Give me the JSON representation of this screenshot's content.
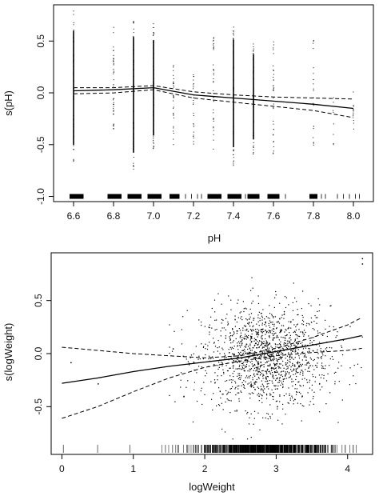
{
  "chart_data": [
    {
      "type": "scatter",
      "xlabel": "pH",
      "ylabel": "s(pH)",
      "xlim": [
        6.5,
        8.1
      ],
      "ylim": [
        -1.05,
        0.85
      ],
      "xticks": [
        6.6,
        6.8,
        7.0,
        7.2,
        7.4,
        7.6,
        7.8,
        8.0
      ],
      "xtick_labels": [
        "6.6",
        "6.8",
        "7.0",
        "7.2",
        "7.4",
        "7.6",
        "7.8",
        "8.0"
      ],
      "yticks": [
        -1.0,
        -0.5,
        0.0,
        0.5
      ],
      "ytick_labels": [
        "-1.0",
        "-0.5",
        "0.0",
        "0.5"
      ],
      "grid": false,
      "legend": "none",
      "partial_residual_columns": [
        {
          "x": 6.6,
          "ymin": -0.67,
          "ymax": 0.8,
          "n": 60,
          "dense": true
        },
        {
          "x": 6.8,
          "ymin": -0.45,
          "ymax": 0.67,
          "n": 40,
          "dense": false
        },
        {
          "x": 6.9,
          "ymin": -0.77,
          "ymax": 0.72,
          "n": 65,
          "dense": true
        },
        {
          "x": 7.0,
          "ymin": -0.55,
          "ymax": 0.68,
          "n": 60,
          "dense": true
        },
        {
          "x": 7.1,
          "ymin": -0.5,
          "ymax": 0.3,
          "n": 30,
          "dense": false
        },
        {
          "x": 7.2,
          "ymin": -0.55,
          "ymax": 0.25,
          "n": 25,
          "dense": false
        },
        {
          "x": 7.3,
          "ymin": -0.55,
          "ymax": 0.55,
          "n": 40,
          "dense": false
        },
        {
          "x": 7.4,
          "ymin": -0.7,
          "ymax": 0.68,
          "n": 55,
          "dense": true
        },
        {
          "x": 7.5,
          "ymin": -0.6,
          "ymax": 0.5,
          "n": 50,
          "dense": true
        },
        {
          "x": 7.6,
          "ymin": -0.6,
          "ymax": 0.5,
          "n": 35,
          "dense": false
        },
        {
          "x": 7.8,
          "ymin": -0.55,
          "ymax": 0.55,
          "n": 22,
          "dense": false
        },
        {
          "x": 7.9,
          "ymin": -0.5,
          "ymax": 0.0,
          "n": 8,
          "dense": false
        },
        {
          "x": 8.0,
          "ymin": -0.45,
          "ymax": 0.05,
          "n": 12,
          "dense": false
        }
      ],
      "smooth": {
        "x": [
          6.6,
          6.8,
          7.0,
          7.2,
          7.4,
          7.6,
          7.8,
          8.0
        ],
        "y": [
          0.02,
          0.03,
          0.05,
          -0.02,
          -0.05,
          -0.08,
          -0.11,
          -0.15
        ]
      },
      "upper_band": {
        "x": [
          6.6,
          6.8,
          7.0,
          7.2,
          7.4,
          7.6,
          7.8,
          8.0
        ],
        "y": [
          0.05,
          0.05,
          0.07,
          0.01,
          -0.02,
          -0.04,
          -0.05,
          -0.06
        ]
      },
      "lower_band": {
        "x": [
          6.6,
          6.8,
          7.0,
          7.2,
          7.4,
          7.6,
          7.8,
          8.0
        ],
        "y": [
          -0.01,
          0.0,
          0.03,
          -0.05,
          -0.09,
          -0.13,
          -0.17,
          -0.24
        ]
      },
      "rug": {
        "dense_ranges": [
          [
            6.58,
            6.65
          ],
          [
            6.77,
            6.84
          ],
          [
            6.87,
            6.94
          ],
          [
            6.97,
            7.04
          ],
          [
            7.08,
            7.13
          ],
          [
            7.27,
            7.34
          ],
          [
            7.37,
            7.44
          ],
          [
            7.47,
            7.53
          ],
          [
            7.57,
            7.63
          ],
          [
            7.78,
            7.82
          ]
        ],
        "sparse_x": [
          7.16,
          7.19,
          7.22,
          7.24,
          7.46,
          7.66,
          7.84,
          7.86,
          7.92,
          7.95,
          7.98,
          8.01,
          8.03
        ]
      }
    },
    {
      "type": "scatter",
      "xlabel": "logWeight",
      "ylabel": "s(logWeight)",
      "xlim": [
        -0.15,
        4.35
      ],
      "ylim": [
        -0.95,
        0.95
      ],
      "xticks": [
        0,
        1,
        2,
        3,
        4
      ],
      "xtick_labels": [
        "0",
        "1",
        "2",
        "3",
        "4"
      ],
      "yticks": [
        -0.5,
        0.0,
        0.5
      ],
      "ytick_labels": [
        "-0.5",
        "0.0",
        "0.5"
      ],
      "grid": false,
      "legend": "none",
      "point_cloud": {
        "n": 1500,
        "x_center": 2.85,
        "x_sd": 0.45,
        "y_center": -0.03,
        "y_sd": 0.24,
        "x_range": [
          1.5,
          4.2
        ],
        "y_range": [
          -0.8,
          0.72
        ]
      },
      "outlier_points": [
        [
          0.12,
          -0.08
        ],
        [
          0.5,
          -0.28
        ],
        [
          4.2,
          0.9
        ],
        [
          4.2,
          0.85
        ],
        [
          1.55,
          0.05
        ],
        [
          1.7,
          -0.4
        ]
      ],
      "smooth": {
        "x": [
          0.0,
          0.5,
          1.0,
          1.5,
          2.0,
          2.5,
          3.0,
          3.5,
          4.0,
          4.2
        ],
        "y": [
          -0.28,
          -0.23,
          -0.17,
          -0.12,
          -0.08,
          -0.04,
          0.02,
          0.08,
          0.14,
          0.17
        ]
      },
      "upper_band": {
        "x": [
          0.0,
          0.5,
          1.0,
          1.5,
          2.0,
          2.5,
          3.0,
          3.5,
          4.0,
          4.2
        ],
        "y": [
          0.06,
          0.03,
          0.0,
          -0.02,
          -0.04,
          -0.02,
          0.05,
          0.15,
          0.27,
          0.34
        ]
      },
      "lower_band": {
        "x": [
          0.0,
          0.5,
          1.0,
          1.5,
          2.0,
          2.5,
          3.0,
          3.5,
          4.0,
          4.2
        ],
        "y": [
          -0.61,
          -0.5,
          -0.36,
          -0.23,
          -0.13,
          -0.07,
          -0.02,
          0.01,
          0.03,
          0.05
        ]
      },
      "rug": {
        "n": 700,
        "x_center": 2.85,
        "x_sd": 0.45,
        "x_range": [
          1.4,
          4.2
        ],
        "extra_x": [
          0.02,
          0.5,
          0.95,
          1.45,
          1.55,
          1.62
        ]
      }
    }
  ]
}
